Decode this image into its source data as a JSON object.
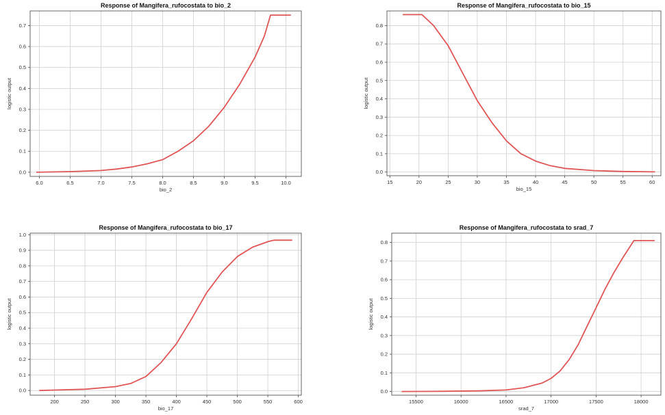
{
  "chart_data": [
    {
      "type": "line",
      "title": "Response of Mangifera_rufocostata to bio_2",
      "xlabel": "bio_2",
      "ylabel": "logistic output",
      "xlim": [
        5.85,
        10.25
      ],
      "ylim": [
        -0.02,
        0.77
      ],
      "xticks": [
        "6.0",
        "6.5",
        "7.0",
        "7.5",
        "8.0",
        "8.5",
        "9.0",
        "9.5",
        "10.0"
      ],
      "yticks": [
        "0.0",
        "0.1",
        "0.2",
        "0.3",
        "0.4",
        "0.5",
        "0.6",
        "0.7"
      ],
      "grid": true,
      "line_color": "#e05555",
      "series": [
        {
          "x": [
            5.95,
            6.5,
            7.0,
            7.25,
            7.5,
            7.75,
            8.0,
            8.25,
            8.5,
            8.75,
            9.0,
            9.25,
            9.5,
            9.65,
            9.75,
            10.08
          ],
          "values": [
            0.0,
            0.003,
            0.008,
            0.015,
            0.025,
            0.04,
            0.06,
            0.1,
            0.15,
            0.22,
            0.31,
            0.42,
            0.55,
            0.65,
            0.75,
            0.75
          ]
        }
      ]
    },
    {
      "type": "line",
      "title": "Response of Mangifera_rufocostata to bio_15",
      "xlabel": "bio_15",
      "ylabel": "logistic output",
      "xlim": [
        14.5,
        61.5
      ],
      "ylim": [
        -0.02,
        0.88
      ],
      "xticks": [
        "15",
        "20",
        "25",
        "30",
        "35",
        "40",
        "45",
        "50",
        "55",
        "60"
      ],
      "yticks": [
        "0.0",
        "0.1",
        "0.2",
        "0.3",
        "0.4",
        "0.5",
        "0.6",
        "0.7",
        "0.8"
      ],
      "grid": true,
      "line_color": "#e05555",
      "series": [
        {
          "x": [
            17.2,
            20.5,
            22.5,
            25.0,
            27.5,
            30.0,
            32.5,
            35.0,
            37.5,
            40.0,
            42.5,
            45.0,
            50.0,
            55.0,
            60.5
          ],
          "values": [
            0.86,
            0.86,
            0.8,
            0.69,
            0.54,
            0.39,
            0.27,
            0.17,
            0.1,
            0.06,
            0.035,
            0.02,
            0.008,
            0.003,
            0.001
          ]
        }
      ]
    },
    {
      "type": "line",
      "title": "Response of Mangifera_rufocostata to bio_17",
      "xlabel": "bio_17",
      "ylabel": "logistic output",
      "xlim": [
        160,
        605
      ],
      "ylim": [
        -0.03,
        1.01
      ],
      "xticks": [
        "200",
        "250",
        "300",
        "350",
        "400",
        "450",
        "500",
        "550",
        "600"
      ],
      "yticks": [
        "0.0",
        "0.1",
        "0.2",
        "0.3",
        "0.4",
        "0.5",
        "0.6",
        "0.7",
        "0.8",
        "0.9",
        "1.0"
      ],
      "grid": true,
      "line_color": "#e05555",
      "series": [
        {
          "x": [
            175,
            200,
            250,
            300,
            325,
            350,
            375,
            400,
            425,
            450,
            475,
            500,
            525,
            550,
            560,
            590
          ],
          "values": [
            0.0,
            0.003,
            0.008,
            0.025,
            0.045,
            0.09,
            0.18,
            0.3,
            0.46,
            0.63,
            0.76,
            0.86,
            0.92,
            0.955,
            0.965,
            0.965
          ]
        }
      ]
    },
    {
      "type": "line",
      "title": "Response of Mangifera_rufocostata to srad_7",
      "xlabel": "srad_7",
      "ylabel": "logistic output",
      "xlim": [
        15230,
        18220
      ],
      "ylim": [
        -0.02,
        0.85
      ],
      "xticks": [
        "15500",
        "16000",
        "16500",
        "17000",
        "17500",
        "18000"
      ],
      "yticks": [
        "0.0",
        "0.1",
        "0.2",
        "0.3",
        "0.4",
        "0.5",
        "0.6",
        "0.7",
        "0.8"
      ],
      "grid": true,
      "line_color": "#e05555",
      "series": [
        {
          "x": [
            15340,
            15800,
            16200,
            16500,
            16700,
            16900,
            17000,
            17100,
            17200,
            17300,
            17400,
            17500,
            17600,
            17700,
            17800,
            17920,
            18150
          ],
          "values": [
            0.0,
            0.001,
            0.003,
            0.008,
            0.02,
            0.045,
            0.07,
            0.11,
            0.17,
            0.25,
            0.35,
            0.45,
            0.55,
            0.64,
            0.72,
            0.81,
            0.81
          ]
        }
      ]
    }
  ]
}
